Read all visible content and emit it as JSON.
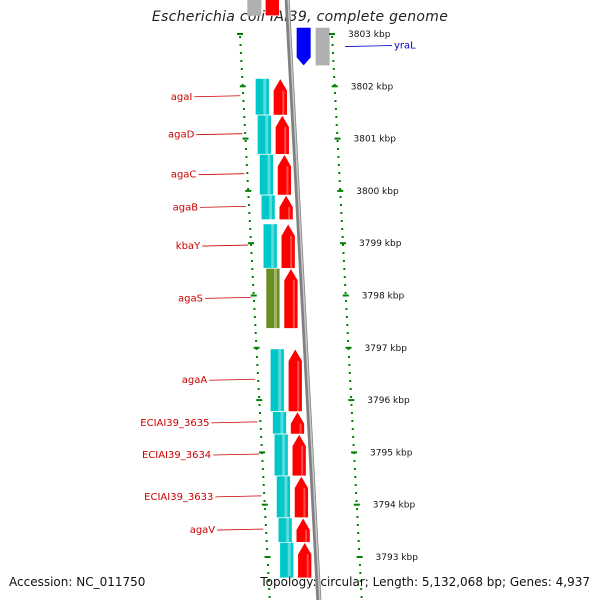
{
  "header": {
    "title": "Escherichia coli IAI39, complete genome"
  },
  "footer": {
    "accession": "Accession: NC_011750",
    "topology": "Topology: circular; Length: 5,132,068 bp; Genes: 4,937"
  },
  "colors": {
    "cds": "#ff0000",
    "gene_blue": "#0000ff",
    "gene_grey": "#b0b0b0",
    "cyan_feature": "#00c8c8",
    "olive_feature": "#6b8e23",
    "label_red": "#cc0000",
    "label_blue": "#0000cc",
    "tick_green": "#008000",
    "backbone": "#808080"
  },
  "scale": {
    "unit": "kbp",
    "ticks": [
      {
        "kbp": 3803,
        "label": "3803 kbp"
      },
      {
        "kbp": 3802,
        "label": "3802 kbp"
      },
      {
        "kbp": 3801,
        "label": "3801 kbp"
      },
      {
        "kbp": 3800,
        "label": "3800 kbp"
      },
      {
        "kbp": 3799,
        "label": "3799 kbp"
      },
      {
        "kbp": 3798,
        "label": "3798 kbp"
      },
      {
        "kbp": 3797,
        "label": "3797 kbp"
      },
      {
        "kbp": 3796,
        "label": "3796 kbp"
      },
      {
        "kbp": 3795,
        "label": "3795 kbp"
      },
      {
        "kbp": 3794,
        "label": "3794 kbp"
      },
      {
        "kbp": 3793,
        "label": "3793 kbp"
      }
    ]
  },
  "genes": [
    {
      "name": "agaI",
      "strand": "-",
      "start": 3802.15,
      "end": 3801.45,
      "feature": "cyan"
    },
    {
      "name": "agaD",
      "strand": "-",
      "start": 3801.45,
      "end": 3800.7,
      "feature": "cyan"
    },
    {
      "name": "agaC",
      "strand": "-",
      "start": 3800.7,
      "end": 3799.92,
      "feature": "cyan"
    },
    {
      "name": "agaB",
      "strand": "-",
      "start": 3799.92,
      "end": 3799.45,
      "feature": "cyan"
    },
    {
      "name": "kbaY",
      "strand": "-",
      "start": 3799.37,
      "end": 3798.52,
      "feature": "cyan"
    },
    {
      "name": "agaS",
      "strand": "-",
      "start": 3798.52,
      "end": 3797.37,
      "feature": "olive"
    },
    {
      "name": "agaA",
      "strand": "-",
      "start": 3796.98,
      "end": 3795.78,
      "feature": "cyan"
    },
    {
      "name": "ECIAI39_3635",
      "strand": "-",
      "start": 3795.78,
      "end": 3795.35,
      "feature": "cyan"
    },
    {
      "name": "ECIAI39_3634",
      "strand": "-",
      "start": 3795.35,
      "end": 3794.55,
      "feature": "cyan"
    },
    {
      "name": "ECIAI39_3633",
      "strand": "-",
      "start": 3794.55,
      "end": 3793.75,
      "feature": "cyan"
    },
    {
      "name": "agaV",
      "strand": "-",
      "start": 3793.75,
      "end": 3793.28,
      "feature": "cyan"
    },
    {
      "name": "",
      "strand": "-",
      "start": 3793.28,
      "end": 3792.6,
      "feature": "cyan"
    }
  ],
  "plus_genes": [
    {
      "name": "yraL",
      "start": 3803.12,
      "end": 3802.4,
      "color": "blue"
    },
    {
      "name": "",
      "start": 3803.12,
      "end": 3802.4,
      "color": "grey"
    }
  ],
  "top_fragment": {
    "start": 3803.6,
    "end": 3803.35
  }
}
